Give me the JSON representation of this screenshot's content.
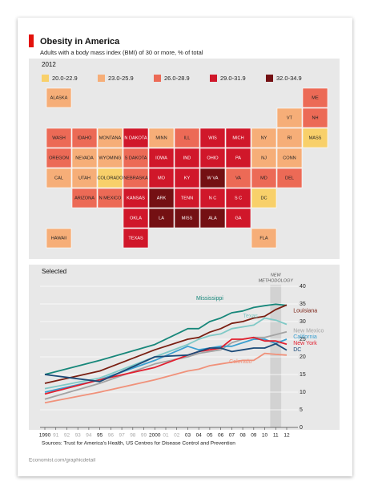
{
  "header": {
    "title": "Obesity in America",
    "subtitle": "Adults with a body mass index (BMI) of 30 or more, % of total"
  },
  "chart_data": [
    {
      "type": "choropleth",
      "title": "2012",
      "legend": [
        {
          "label": "20.0-22.9",
          "color": "#f8d06a"
        },
        {
          "label": "23.0-25.9",
          "color": "#f6ae78"
        },
        {
          "label": "26.0-28.9",
          "color": "#ec6a56"
        },
        {
          "label": "29.0-31.9",
          "color": "#d0172a"
        },
        {
          "label": "32.0-34.9",
          "color": "#741013"
        }
      ],
      "regions": [
        {
          "label": "ALASKA",
          "class": "23.0-25.9"
        },
        {
          "label": "ME",
          "class": "26.0-28.9"
        },
        {
          "label": "VT",
          "class": "23.0-25.9"
        },
        {
          "label": "NH",
          "class": "26.0-28.9"
        },
        {
          "label": "WASH",
          "class": "26.0-28.9"
        },
        {
          "label": "IDAHO",
          "class": "26.0-28.9"
        },
        {
          "label": "MONTANA",
          "class": "23.0-25.9"
        },
        {
          "label": "N DAKOTA",
          "class": "29.0-31.9"
        },
        {
          "label": "MINN",
          "class": "23.0-25.9"
        },
        {
          "label": "ILL",
          "class": "26.0-28.9"
        },
        {
          "label": "WIS",
          "class": "29.0-31.9"
        },
        {
          "label": "MICH",
          "class": "29.0-31.9"
        },
        {
          "label": "NY",
          "class": "23.0-25.9"
        },
        {
          "label": "RI",
          "class": "23.0-25.9"
        },
        {
          "label": "MASS",
          "class": "20.0-22.9"
        },
        {
          "label": "OREGON",
          "class": "26.0-28.9"
        },
        {
          "label": "NEVADA",
          "class": "23.0-25.9"
        },
        {
          "label": "WYOMING",
          "class": "23.0-25.9"
        },
        {
          "label": "S DAKOTA",
          "class": "26.0-28.9"
        },
        {
          "label": "IOWA",
          "class": "29.0-31.9"
        },
        {
          "label": "IND",
          "class": "29.0-31.9"
        },
        {
          "label": "OHIO",
          "class": "29.0-31.9"
        },
        {
          "label": "PA",
          "class": "29.0-31.9"
        },
        {
          "label": "NJ",
          "class": "23.0-25.9"
        },
        {
          "label": "CONN",
          "class": "23.0-25.9"
        },
        {
          "label": "CAL",
          "class": "23.0-25.9"
        },
        {
          "label": "UTAH",
          "class": "23.0-25.9"
        },
        {
          "label": "COLORADO",
          "class": "20.0-22.9"
        },
        {
          "label": "NEBRASKA",
          "class": "26.0-28.9"
        },
        {
          "label": "MO",
          "class": "29.0-31.9"
        },
        {
          "label": "KY",
          "class": "29.0-31.9"
        },
        {
          "label": "W VA",
          "class": "32.0-34.9"
        },
        {
          "label": "VA",
          "class": "26.0-28.9"
        },
        {
          "label": "MD",
          "class": "26.0-28.9"
        },
        {
          "label": "DEL",
          "class": "26.0-28.9"
        },
        {
          "label": "ARIZONA",
          "class": "26.0-28.9"
        },
        {
          "label": "N MEXICO",
          "class": "26.0-28.9"
        },
        {
          "label": "KANSAS",
          "class": "29.0-31.9"
        },
        {
          "label": "ARK",
          "class": "32.0-34.9"
        },
        {
          "label": "TENN",
          "class": "29.0-31.9"
        },
        {
          "label": "N C",
          "class": "29.0-31.9"
        },
        {
          "label": "S C",
          "class": "29.0-31.9"
        },
        {
          "label": "DC",
          "class": "20.0-22.9"
        },
        {
          "label": "OKLA",
          "class": "29.0-31.9"
        },
        {
          "label": "LA",
          "class": "32.0-34.9"
        },
        {
          "label": "MISS",
          "class": "32.0-34.9"
        },
        {
          "label": "ALA",
          "class": "32.0-34.9"
        },
        {
          "label": "GA",
          "class": "29.0-31.9"
        },
        {
          "label": "HAWAII",
          "class": "23.0-25.9"
        },
        {
          "label": "TEXAS",
          "class": "29.0-31.9"
        },
        {
          "label": "FLA",
          "class": "23.0-25.9"
        }
      ]
    },
    {
      "type": "line",
      "title": "Selected",
      "annotation": [
        "NEW",
        "METHODOLOGY"
      ],
      "shaded_x": 2011,
      "x": [
        1990,
        1995,
        2000,
        2003,
        2004,
        2005,
        2006,
        2007,
        2008,
        2009,
        2010,
        2011,
        2012
      ],
      "xlim": [
        1990,
        2012
      ],
      "xticks": [
        1990,
        {
          "value": 1991,
          "label": "91"
        },
        {
          "value": 1992,
          "label": "92"
        },
        {
          "value": 1993,
          "label": "93"
        },
        {
          "value": 1994,
          "label": "94"
        },
        {
          "value": 1995,
          "label": "95"
        },
        {
          "value": 1996,
          "label": "96"
        },
        {
          "value": 1997,
          "label": "97"
        },
        {
          "value": 1998,
          "label": "98"
        },
        {
          "value": 1999,
          "label": "99"
        },
        2000,
        {
          "value": 2001,
          "label": "01"
        },
        {
          "value": 2002,
          "label": "02"
        },
        {
          "value": 2003,
          "label": "03"
        },
        {
          "value": 2004,
          "label": "04"
        },
        {
          "value": 2005,
          "label": "05"
        },
        {
          "value": 2006,
          "label": "06"
        },
        {
          "value": 2007,
          "label": "07"
        },
        {
          "value": 2008,
          "label": "08"
        },
        {
          "value": 2009,
          "label": "09"
        },
        {
          "value": 2010,
          "label": "10"
        },
        {
          "value": 2011,
          "label": "11"
        },
        {
          "value": 2012,
          "label": "12"
        }
      ],
      "ylim": [
        0,
        40
      ],
      "yticks": [
        0,
        5,
        10,
        15,
        20,
        25,
        30,
        35,
        40
      ],
      "y_axis_side": "right",
      "grid": true,
      "series": [
        {
          "name": "Mississippi",
          "color": "#17877a",
          "values": [
            15,
            19,
            23.5,
            28,
            28,
            30,
            31,
            32.5,
            33,
            34,
            34.5,
            34.9,
            34.6
          ]
        },
        {
          "name": "Louisiana",
          "color": "#7a1f12",
          "values": [
            12.5,
            16,
            22,
            25,
            25.5,
            27,
            28,
            29.5,
            30,
            31,
            31.5,
            33.4,
            34.7
          ]
        },
        {
          "name": "Texas",
          "color": "#7fc9c6",
          "values": [
            11,
            14,
            20,
            23.5,
            25,
            26,
            26.5,
            28,
            28.5,
            29,
            31,
            30.4,
            29.2
          ]
        },
        {
          "name": "New Mexico",
          "color": "#a3a3a3",
          "values": [
            8,
            12.5,
            18,
            20,
            21,
            21.5,
            22,
            24,
            25,
            25.5,
            25.5,
            26.3,
            27.1
          ]
        },
        {
          "name": "California",
          "color": "#3a9fd0",
          "values": [
            10,
            13.5,
            19,
            23,
            22,
            22.5,
            23,
            23,
            24,
            25,
            25,
            23.8,
            25
          ]
        },
        {
          "name": "New York",
          "color": "#e21f2f",
          "values": [
            9.5,
            13.5,
            17,
            20.5,
            21.5,
            22,
            22.5,
            25,
            25,
            25.5,
            24.5,
            24.5,
            23.6
          ]
        },
        {
          "name": "DC",
          "color": "#1b4a78",
          "values": [
            15,
            13,
            20,
            20.5,
            21.5,
            22.5,
            22.5,
            21.5,
            22,
            22.5,
            22.5,
            23.7,
            21.9
          ]
        },
        {
          "name": "Colorado",
          "color": "#f0917a",
          "values": [
            7,
            10,
            13.5,
            16,
            16.5,
            17.5,
            18,
            18.5,
            19,
            19,
            21,
            20.7,
            20.5
          ]
        }
      ]
    }
  ],
  "source": "Sources: Trust for America's Health, US Centres for Disease Control and Prevention",
  "footer": "Economist.com/graphicdetail"
}
